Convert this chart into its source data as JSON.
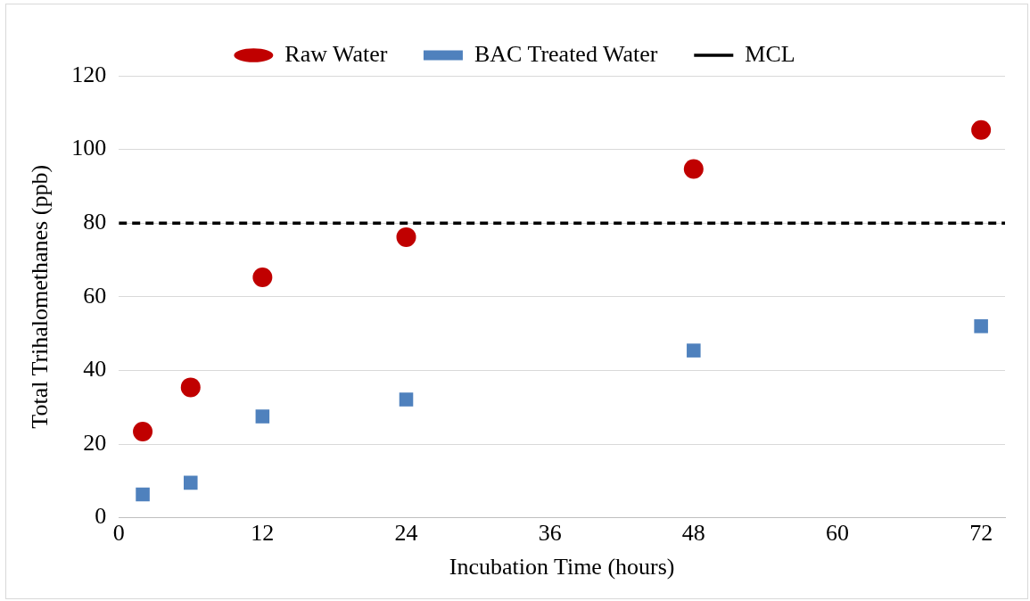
{
  "chart_data": {
    "type": "scatter",
    "xlabel": "Incubation Time (hours)",
    "ylabel": "Total Trihalomethanes (ppb)",
    "xlim": [
      0,
      74
    ],
    "xticks": [
      0,
      12,
      24,
      36,
      48,
      60,
      72
    ],
    "ylim": [
      0,
      120
    ],
    "yticks": [
      0,
      20,
      40,
      60,
      80,
      100,
      120
    ],
    "grid": "y",
    "legend": "top",
    "series": [
      {
        "name": "Raw Water",
        "color": "#c00000",
        "marker": "circle",
        "x": [
          2,
          6,
          12,
          24,
          48,
          72
        ],
        "values": [
          23.4,
          35.4,
          65.3,
          76.2,
          94.7,
          105.3
        ]
      },
      {
        "name": "BAC Treated Water",
        "color": "#4f81bd",
        "marker": "square",
        "x": [
          2,
          6,
          12,
          24,
          48,
          72
        ],
        "values": [
          6.3,
          9.5,
          27.5,
          32.1,
          45.4,
          52
        ]
      },
      {
        "name": "MCL",
        "type": "line",
        "color": "#000000",
        "marker": "none",
        "line_style": "dashed",
        "x": [
          0,
          74
        ],
        "values": [
          80,
          80
        ]
      }
    ]
  }
}
